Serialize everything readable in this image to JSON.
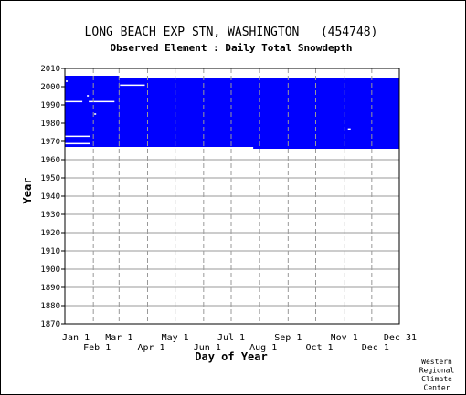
{
  "chart_data": {
    "type": "heatmap",
    "title": "LONG BEACH EXP STN, WASHINGTON   (454748)",
    "subtitle": "Observed Element : Daily Total Snowdepth",
    "xlabel": "Day of Year",
    "ylabel": "Year",
    "credit": [
      "Western",
      "Regional",
      "Climate",
      "Center"
    ],
    "y_ticks": [
      "2010",
      "2000",
      "1990",
      "1980",
      "1970",
      "1960",
      "1950",
      "1940",
      "1930",
      "1920",
      "1910",
      "1900",
      "1890",
      "1880",
      "1870"
    ],
    "y_tick_values": [
      2010,
      2000,
      1990,
      1980,
      1970,
      1960,
      1950,
      1940,
      1930,
      1920,
      1910,
      1900,
      1890,
      1880,
      1870
    ],
    "ylim": [
      1870,
      2010
    ],
    "xlim": [
      1,
      365
    ],
    "x_ticks_top": [
      {
        "label": "Jan 1",
        "day": 1
      },
      {
        "label": "Mar 1",
        "day": 60
      },
      {
        "label": "May 1",
        "day": 121
      },
      {
        "label": "Jul 1",
        "day": 182
      },
      {
        "label": "Sep 1",
        "day": 244
      },
      {
        "label": "Nov 1",
        "day": 305
      },
      {
        "label": "Dec 31",
        "day": 365
      }
    ],
    "x_ticks_bottom": [
      {
        "label": "Feb 1",
        "day": 32
      },
      {
        "label": "Apr 1",
        "day": 91
      },
      {
        "label": "Jun 1",
        "day": 152
      },
      {
        "label": "Aug 1",
        "day": 213
      },
      {
        "label": "Oct 1",
        "day": 274
      },
      {
        "label": "Dec 1",
        "day": 335
      }
    ],
    "grid": true,
    "data_color": "#0000ff",
    "gap_color": "#ffffff",
    "data_blocks": [
      {
        "day_start": 1,
        "day_end": 60,
        "year_start": 1967,
        "year_end": 2006
      },
      {
        "day_start": 60,
        "day_end": 365,
        "year_start": 1967,
        "year_end": 2005
      },
      {
        "day_start": 206,
        "day_end": 365,
        "year_start": 1966,
        "year_end": 1967
      }
    ],
    "gaps": [
      {
        "day_start": 1,
        "day_end": 28,
        "year_start": 1968.6,
        "year_end": 1969.2
      },
      {
        "day_start": 1,
        "day_end": 28,
        "year_start": 1972.6,
        "year_end": 1973.2
      },
      {
        "day_start": 1,
        "day_end": 20,
        "year_start": 1991.6,
        "year_end": 1992.2
      },
      {
        "day_start": 27,
        "day_end": 55,
        "year_start": 1991.6,
        "year_end": 1992.2
      },
      {
        "day_start": 25,
        "day_end": 27,
        "year_start": 1994.6,
        "year_end": 1995.4
      },
      {
        "day_start": 33,
        "day_end": 35,
        "year_start": 1984.6,
        "year_end": 1985.4
      },
      {
        "day_start": 2,
        "day_end": 4,
        "year_start": 2002.6,
        "year_end": 2003.4
      },
      {
        "day_start": 61,
        "day_end": 88,
        "year_start": 2000.6,
        "year_end": 2001.2
      },
      {
        "day_start": 309,
        "day_end": 312,
        "year_start": 1976.6,
        "year_end": 1977.2
      }
    ]
  }
}
